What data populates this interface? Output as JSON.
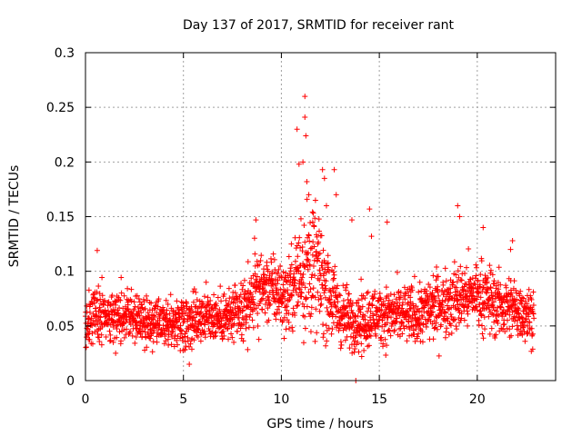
{
  "chart_data": {
    "type": "scatter",
    "title": "Day 137 of 2017, SRMTID for receiver rant",
    "xlabel": "GPS time / hours",
    "ylabel": "SRMTID / TECUs",
    "xlim": [
      0,
      24
    ],
    "ylim": [
      0,
      0.3
    ],
    "xticks": [
      0,
      5,
      10,
      15,
      20
    ],
    "xtick_labels": [
      "0",
      "5",
      "10",
      "15",
      "20"
    ],
    "yticks": [
      0,
      0.05,
      0.1,
      0.15,
      0.2,
      0.25,
      0.3
    ],
    "ytick_labels": [
      "0",
      "0.05",
      "0.1",
      "0.15",
      "0.2",
      "0.25",
      "0.3"
    ],
    "grid": true,
    "marker": "+",
    "color": "#ff0000",
    "point_interval_hours": 0.01,
    "x_end": 22.9,
    "trend": {
      "hours": [
        0,
        0.5,
        1,
        2,
        3,
        4,
        5,
        6,
        7,
        8,
        8.7,
        9.5,
        10.3,
        10.8,
        11.2,
        11.8,
        12.3,
        13,
        14,
        15,
        16,
        17,
        18,
        19,
        20,
        21,
        22,
        22.9
      ],
      "levels": [
        0.05,
        0.062,
        0.058,
        0.062,
        0.052,
        0.05,
        0.055,
        0.06,
        0.057,
        0.06,
        0.085,
        0.085,
        0.075,
        0.095,
        0.105,
        0.1,
        0.085,
        0.06,
        0.055,
        0.06,
        0.06,
        0.06,
        0.07,
        0.075,
        0.08,
        0.07,
        0.065,
        0.06
      ],
      "spread": [
        0.014,
        0.018,
        0.014,
        0.017,
        0.014,
        0.014,
        0.016,
        0.016,
        0.015,
        0.018,
        0.022,
        0.02,
        0.02,
        0.03,
        0.04,
        0.035,
        0.03,
        0.018,
        0.017,
        0.017,
        0.017,
        0.018,
        0.02,
        0.02,
        0.02,
        0.02,
        0.018,
        0.017
      ]
    },
    "highlight_points": [
      {
        "x": 0.6,
        "y": 0.119
      },
      {
        "x": 8.7,
        "y": 0.147
      },
      {
        "x": 10.8,
        "y": 0.23
      },
      {
        "x": 10.9,
        "y": 0.198
      },
      {
        "x": 11.0,
        "y": 0.148
      },
      {
        "x": 11.2,
        "y": 0.26
      },
      {
        "x": 11.2,
        "y": 0.241
      },
      {
        "x": 11.25,
        "y": 0.224
      },
      {
        "x": 11.1,
        "y": 0.2
      },
      {
        "x": 11.3,
        "y": 0.182
      },
      {
        "x": 11.4,
        "y": 0.17
      },
      {
        "x": 11.6,
        "y": 0.145
      },
      {
        "x": 12.1,
        "y": 0.193
      },
      {
        "x": 12.2,
        "y": 0.185
      },
      {
        "x": 12.3,
        "y": 0.16
      },
      {
        "x": 12.7,
        "y": 0.193
      },
      {
        "x": 12.8,
        "y": 0.17
      },
      {
        "x": 13.6,
        "y": 0.147
      },
      {
        "x": 13.8,
        "y": 0.0
      },
      {
        "x": 14.5,
        "y": 0.157
      },
      {
        "x": 14.6,
        "y": 0.132
      },
      {
        "x": 15.4,
        "y": 0.145
      },
      {
        "x": 19.0,
        "y": 0.16
      },
      {
        "x": 19.1,
        "y": 0.15
      },
      {
        "x": 20.3,
        "y": 0.14
      },
      {
        "x": 21.8,
        "y": 0.128
      },
      {
        "x": 21.7,
        "y": 0.12
      },
      {
        "x": 14.1,
        "y": 0.022
      },
      {
        "x": 5.3,
        "y": 0.015
      }
    ]
  }
}
